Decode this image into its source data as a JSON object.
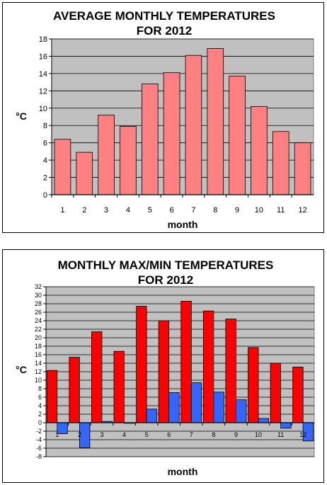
{
  "chart_data": [
    {
      "type": "bar",
      "title_lines": [
        "AVERAGE MONTHLY TEMPERATURES",
        "FOR 2012"
      ],
      "xlabel": "month",
      "ylabel": "°C",
      "ylim": [
        0,
        18
      ],
      "yticks": [
        0,
        2,
        4,
        6,
        8,
        10,
        12,
        14,
        16,
        18
      ],
      "categories": [
        "1",
        "2",
        "3",
        "4",
        "5",
        "6",
        "7",
        "8",
        "9",
        "10",
        "11",
        "12"
      ],
      "series": [
        {
          "values": [
            6.4,
            4.9,
            9.2,
            7.9,
            12.8,
            14.1,
            16.1,
            16.9,
            13.7,
            10.2,
            7.3,
            6.0
          ]
        }
      ],
      "grid": true,
      "colors": {
        "bar": "#ff8080",
        "plot_bg": "#c0c0c0"
      }
    },
    {
      "type": "bar",
      "title_lines": [
        "MONTHLY MAX/MIN TEMPERATURES",
        "FOR 2012"
      ],
      "xlabel": "month",
      "ylabel": "°C",
      "ylim": [
        -8,
        32
      ],
      "yticks": [
        -8,
        -6,
        -4,
        -2,
        0,
        2,
        4,
        6,
        8,
        10,
        12,
        14,
        16,
        18,
        20,
        22,
        24,
        26,
        28,
        30,
        32
      ],
      "categories": [
        "1",
        "2",
        "3",
        "4",
        "5",
        "6",
        "7",
        "8",
        "9",
        "10",
        "11",
        "12"
      ],
      "series": [
        {
          "values": [
            12.3,
            15.4,
            21.4,
            16.8,
            27.4,
            24.0,
            28.6,
            26.3,
            24.4,
            17.7,
            14.0,
            13.1
          ]
        },
        {
          "values": [
            -2.6,
            -5.9,
            0.3,
            -0.1,
            3.2,
            7.1,
            9.4,
            7.2,
            5.4,
            1.0,
            -1.3,
            -4.3
          ]
        }
      ],
      "grid": true,
      "colors": {
        "series": [
          "#ff0000",
          "#3366ff"
        ],
        "plot_bg": "#c0c0c0"
      }
    }
  ]
}
